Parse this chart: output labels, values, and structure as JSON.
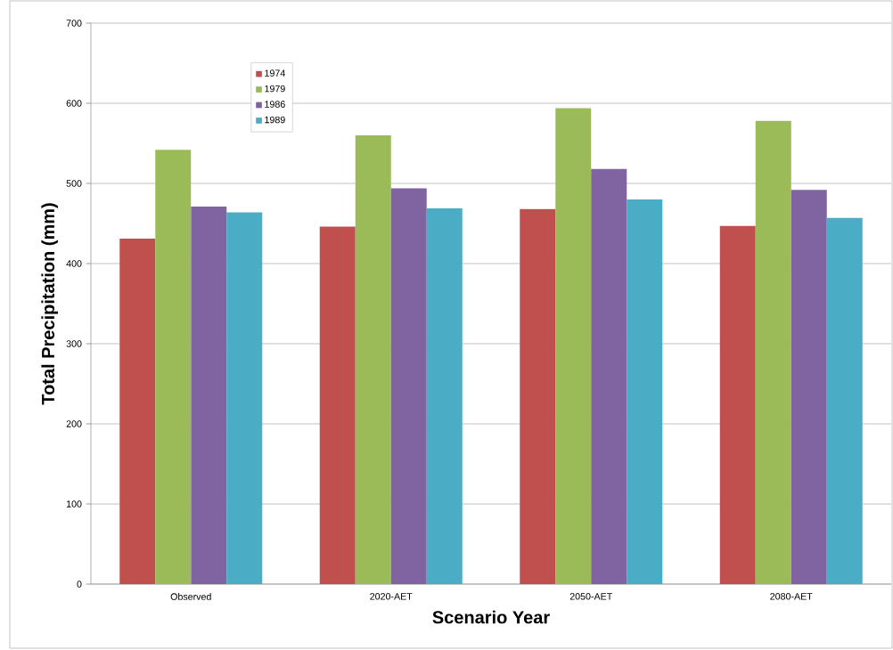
{
  "chart_data": {
    "type": "bar",
    "xlabel": "Scenario Year",
    "ylabel": "Total Precipitation (mm)",
    "categories": [
      "Observed",
      "2020-AET",
      "2050-AET",
      "2080-AET"
    ],
    "series": [
      {
        "name": "1974",
        "color": "#c0504d",
        "values": [
          431,
          446,
          468,
          447
        ]
      },
      {
        "name": "1979",
        "color": "#9bbb59",
        "values": [
          542,
          560,
          594,
          578
        ]
      },
      {
        "name": "1986",
        "color": "#8064a2",
        "values": [
          471,
          494,
          518,
          492
        ]
      },
      {
        "name": "1989",
        "color": "#4bacc6",
        "values": [
          464,
          469,
          480,
          457
        ]
      }
    ],
    "ylim": [
      0,
      700
    ],
    "yticks": [
      0,
      100,
      200,
      300,
      400,
      500,
      600,
      700
    ],
    "grid": "y",
    "legend": "top left"
  }
}
